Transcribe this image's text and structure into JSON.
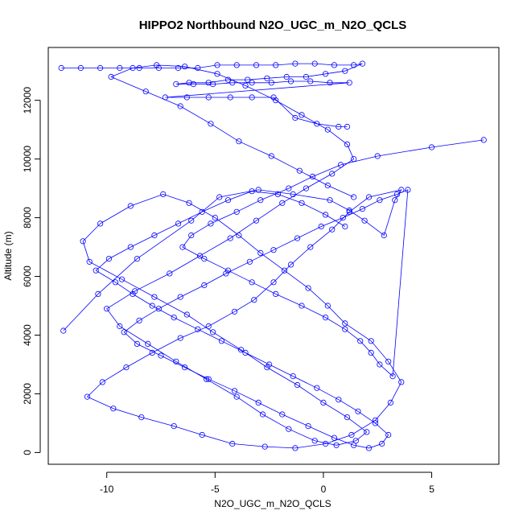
{
  "chart_data": {
    "type": "scatter",
    "title": "HIPPO2 Northbound N2O_UGC_m_N2O_QCLS",
    "xlabel": "N2O_UGC_m_N2O_QCLS",
    "ylabel": "Altitude (m)",
    "xlim": [
      -12.7,
      8.1
    ],
    "ylim": [
      -400,
      13800
    ],
    "x_ticks": [
      -10,
      -5,
      0,
      5
    ],
    "x_tick_labels": [
      "-10",
      "-5",
      "0",
      "5"
    ],
    "y_ticks": [
      0,
      2000,
      4000,
      6000,
      8000,
      10000,
      12000
    ],
    "y_tick_labels": [
      "0",
      "2000",
      "4000",
      "6000",
      "8000",
      "10000",
      "12000"
    ],
    "grid": false,
    "legend": "none",
    "marker": "open-circle",
    "connected": true,
    "color": "#0000ff",
    "series": [
      {
        "x": [
          -12.0,
          -10.4,
          -8.6,
          -6.1,
          -4.8,
          -3.0,
          -1.4,
          0.3,
          1.2,
          1.9,
          2.8,
          3.3,
          3.6,
          2.1,
          1.2,
          0.4,
          -0.6,
          -1.5,
          -2.3,
          -3.2,
          -4.1,
          -5.3,
          -6.6,
          -7.9,
          -9.1,
          -10.2,
          -10.9,
          -9.7,
          -8.4,
          -6.9,
          -5.6,
          -4.2,
          -2.7,
          -1.3,
          0.1,
          1.3,
          2.4,
          3.1,
          3.6,
          3.0,
          2.2,
          1.0,
          0.2,
          -0.7,
          -1.8,
          -2.9,
          -3.9,
          -5.0,
          -6.2,
          -7.4,
          -8.9,
          -10.3,
          -11.1,
          -10.8,
          -9.3,
          -7.8,
          -6.3,
          -5.1,
          -3.8,
          -2.6,
          -1.2,
          0.0,
          1.1,
          2.0,
          1.5,
          0.6,
          -0.4,
          -1.6,
          -2.8,
          -4.0,
          -5.4,
          -6.8,
          -8.1,
          -9.4,
          -10.0,
          -8.7,
          -7.1,
          -5.7,
          -4.3,
          -3.1,
          -1.9,
          -0.8,
          0.4,
          1.4,
          1.1,
          0.2,
          -1.0,
          -2.2,
          -3.6,
          -4.9,
          -6.4,
          -7.7,
          -8.8,
          -9.8,
          -8.2,
          -6.6,
          -5.2,
          -3.9,
          -2.4,
          -1.1,
          0.2,
          1.4
        ],
        "y": [
          4150,
          5400,
          6600,
          7900,
          8700,
          8950,
          8800,
          8600,
          8250,
          7900,
          7400,
          8600,
          8950,
          8700,
          8200,
          7600,
          7000,
          6400,
          5800,
          5200,
          4800,
          4300,
          3900,
          3400,
          2900,
          2400,
          1900,
          1500,
          1200,
          900,
          600,
          300,
          200,
          150,
          300,
          600,
          1100,
          1700,
          2400,
          3100,
          3800,
          4400,
          5000,
          5600,
          6200,
          6800,
          7400,
          8000,
          8500,
          8800,
          8400,
          7800,
          7200,
          6500,
          5900,
          5300,
          4700,
          4100,
          3500,
          2900,
          2300,
          1700,
          1200,
          700,
          400,
          250,
          400,
          800,
          1300,
          1900,
          2500,
          3100,
          3700,
          4300,
          4900,
          5500,
          6100,
          6700,
          7300,
          7900,
          8500,
          9000,
          9500,
          10000,
          10500,
          11000,
          11500,
          12000,
          12500,
          12900,
          13150,
          13200,
          13100,
          12800,
          12300,
          11800,
          11200,
          10600,
          10100,
          9600,
          9100,
          8700
        ]
      },
      {
        "x": [
          7.4,
          5.0,
          2.5,
          0.8,
          -0.5,
          -1.6,
          -2.9,
          -4.0,
          -5.2,
          -6.1,
          -6.5,
          -5.5,
          -4.4,
          -3.3,
          -2.2,
          -1.0,
          0.1,
          1.0,
          1.7,
          2.2,
          2.6,
          3.2,
          3.9,
          3.4,
          2.6,
          1.8,
          0.9,
          -0.1,
          -1.2,
          -2.3,
          -3.4,
          -4.5,
          -5.5,
          -6.6,
          -7.6,
          -8.5,
          -9.2,
          -8.6,
          -7.5,
          -6.4,
          -5.3,
          -4.1,
          -3.0,
          -1.9,
          -0.7,
          0.5,
          1.4,
          2.1,
          2.7,
          3.0,
          2.4,
          1.6,
          0.7,
          -0.3,
          -1.4,
          -2.5,
          -3.6,
          -4.7,
          -5.8,
          -6.9,
          -7.9,
          -8.8,
          -9.6,
          -10.5,
          -9.9,
          -8.9,
          -7.8,
          -6.7,
          -5.6,
          -4.4,
          -3.3,
          -2.1,
          -1.0,
          0.1,
          1.0
        ],
        "y": [
          10650,
          10400,
          10100,
          9800,
          9400,
          9000,
          8600,
          8200,
          7800,
          7400,
          7000,
          6600,
          6200,
          5800,
          5400,
          5000,
          4600,
          4200,
          3800,
          3400,
          3000,
          2600,
          8950,
          8800,
          8600,
          8300,
          8000,
          7700,
          7300,
          6900,
          6500,
          6100,
          5700,
          5300,
          4900,
          4500,
          4100,
          3700,
          3300,
          2900,
          2500,
          2100,
          1700,
          1300,
          900,
          500,
          250,
          150,
          300,
          600,
          1000,
          1400,
          1800,
          2200,
          2600,
          3000,
          3400,
          3800,
          4200,
          4600,
          5000,
          5400,
          5800,
          6200,
          6600,
          7000,
          7400,
          7800,
          8200,
          8600,
          8900,
          8800,
          8500,
          8100,
          7700
        ]
      },
      {
        "x": [
          -12.1,
          -11.2,
          -10.3,
          -9.4,
          -8.5,
          -7.6,
          -6.7,
          -5.8,
          -4.9,
          -4.0,
          -3.1,
          -2.2,
          -1.3,
          -0.4,
          0.5,
          1.4,
          1.8,
          1.0,
          0.1,
          -0.8,
          -1.7,
          -2.6,
          -3.5,
          -4.4,
          -5.3,
          -6.2,
          -6.8,
          -6.0,
          -5.1,
          -4.2,
          -3.3,
          -2.4,
          -1.5,
          -0.6,
          0.3,
          1.2,
          -7.3,
          -6.3,
          -5.3,
          -4.3,
          -3.3,
          -2.3,
          -1.3,
          -0.3,
          0.7,
          1.1
        ],
        "y": [
          13100,
          13100,
          13100,
          13100,
          13100,
          13100,
          13100,
          13100,
          13200,
          13200,
          13200,
          13200,
          13250,
          13250,
          13200,
          13200,
          13250,
          13000,
          12900,
          12800,
          12800,
          12750,
          12700,
          12700,
          12600,
          12600,
          12550,
          12550,
          12550,
          12600,
          12600,
          12600,
          12650,
          12650,
          12600,
          12600,
          12100,
          12100,
          12100,
          12100,
          12100,
          12100,
          11400,
          11200,
          11100,
          11100
        ]
      }
    ]
  }
}
